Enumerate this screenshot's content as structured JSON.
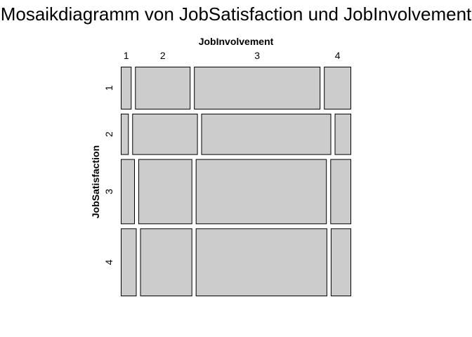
{
  "chart_data": {
    "type": "mosaic",
    "title": "Mosaikdiagramm von JobSatisfaction und JobInvolvement",
    "xlabel": "JobInvolvement",
    "ylabel": "JobSatisfaction",
    "x_categories": [
      "1",
      "2",
      "3",
      "4"
    ],
    "y_categories": [
      "1",
      "2",
      "3",
      "4"
    ],
    "row_proportions": [
      0.197,
      0.19,
      0.3,
      0.313
    ],
    "cell_proportions": [
      [
        0.049,
        0.252,
        0.575,
        0.124
      ],
      [
        0.036,
        0.298,
        0.591,
        0.075
      ],
      [
        0.064,
        0.245,
        0.596,
        0.095
      ],
      [
        0.072,
        0.237,
        0.598,
        0.093
      ]
    ],
    "tile_color": "#cccccc",
    "border_color": "#000000"
  }
}
